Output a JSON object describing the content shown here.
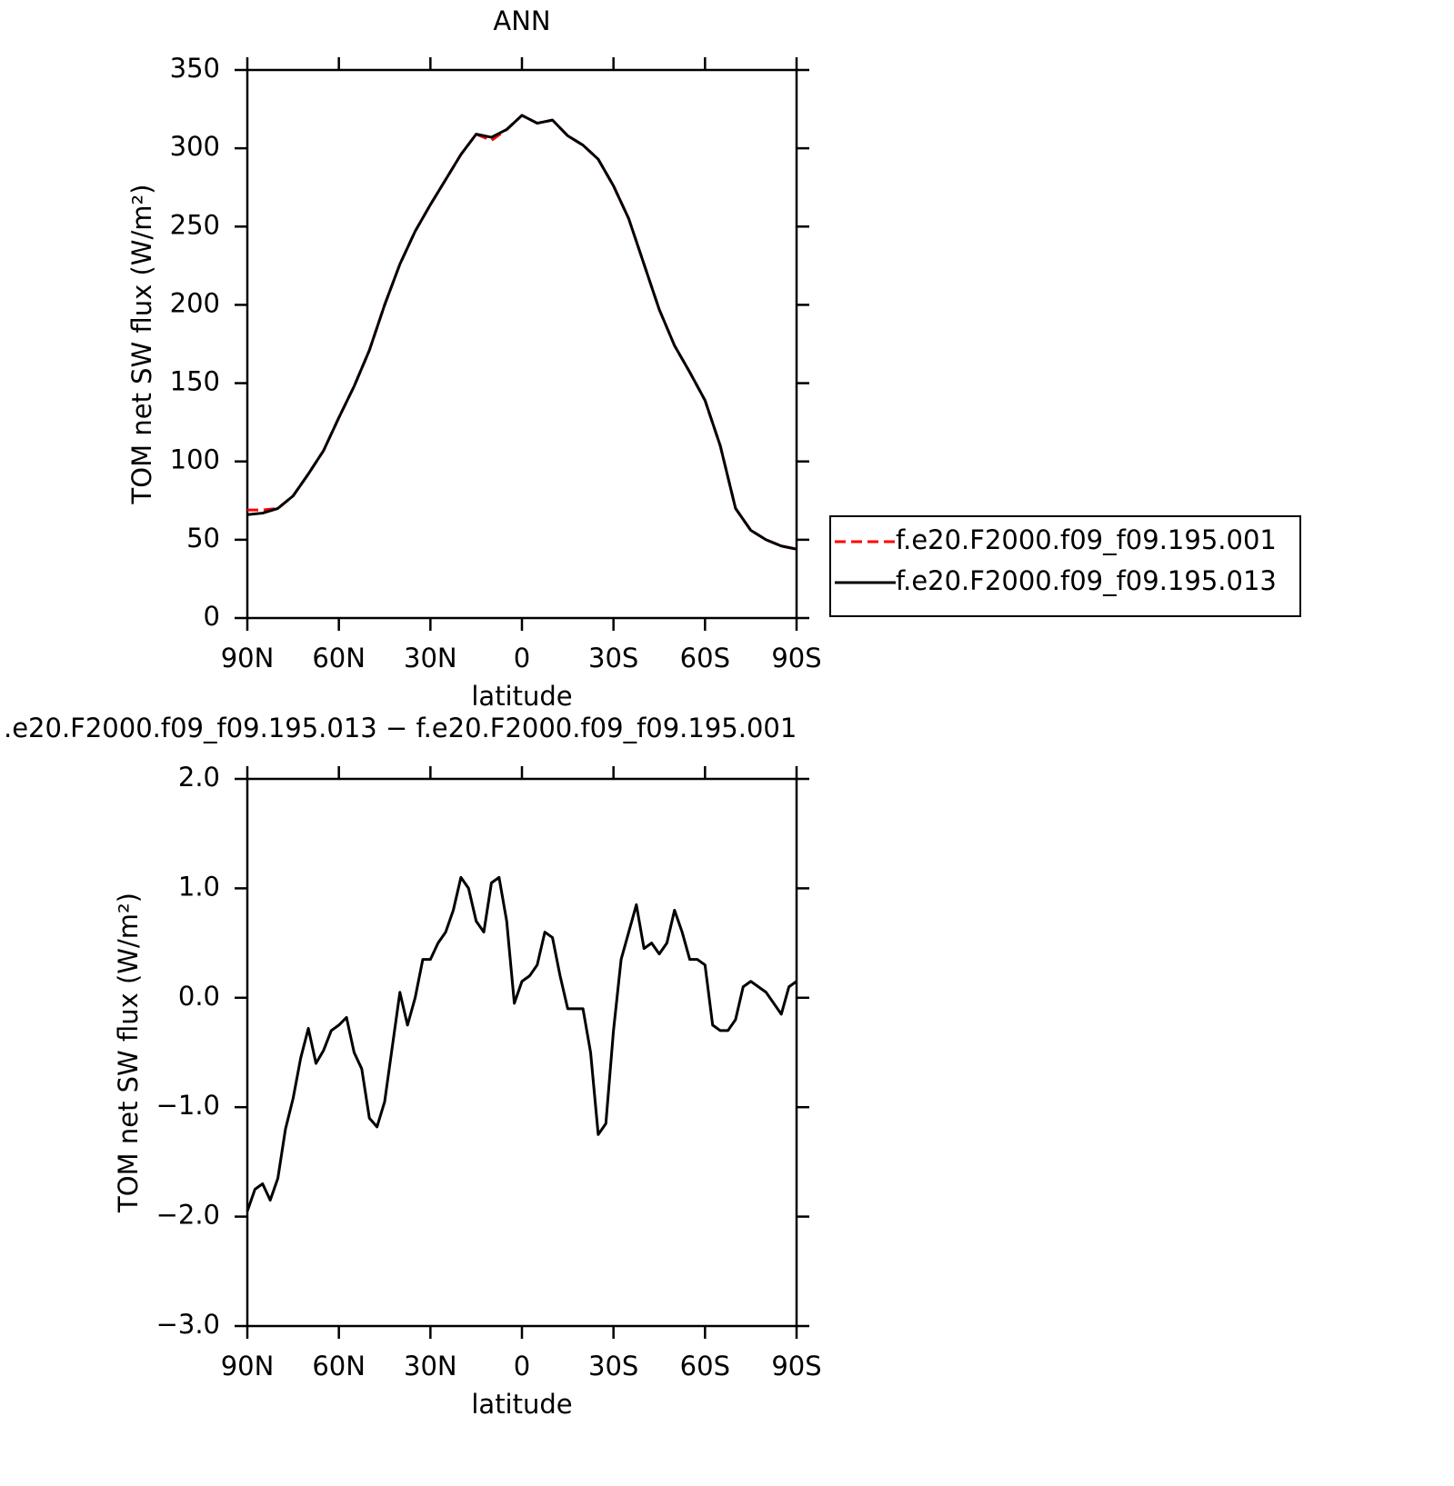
{
  "chart_data": [
    {
      "type": "line",
      "title": "ANN",
      "x_label": "latitude",
      "y_label": "TOM net SW flux (W/m²)",
      "x": [
        90,
        85,
        80,
        75,
        70,
        65,
        60,
        55,
        50,
        45,
        40,
        35,
        30,
        25,
        20,
        15,
        10,
        5,
        0,
        -5,
        -10,
        -15,
        -20,
        -25,
        -30,
        -35,
        -40,
        -45,
        -50,
        -55,
        -60,
        -65,
        -70,
        -75,
        -80,
        -85,
        -90
      ],
      "series": [
        {
          "name": "f.e20.F2000.f09_f09.195.001",
          "color": "#ff0000",
          "linestyle": "dashed",
          "values": [
            69,
            69,
            70,
            78,
            92,
            107,
            128,
            148,
            171,
            200,
            226,
            247,
            264,
            280,
            296,
            309,
            305,
            312,
            321,
            316,
            318,
            308,
            302,
            293,
            276,
            255,
            226,
            197,
            174,
            157,
            139,
            110,
            70,
            56,
            50,
            46,
            44
          ]
        },
        {
          "name": "f.e20.F2000.f09_f09.195.013",
          "color": "#000000",
          "linestyle": "solid",
          "values": [
            66,
            67,
            70,
            78,
            92,
            107,
            128,
            148,
            171,
            200,
            226,
            247,
            264,
            280,
            296,
            309,
            307,
            312,
            321,
            316,
            318,
            308,
            302,
            293,
            276,
            255,
            226,
            197,
            174,
            157,
            139,
            110,
            70,
            56,
            50,
            46,
            44
          ]
        }
      ],
      "xlim": [
        90,
        -90
      ],
      "xticks": [
        {
          "value": 90,
          "label": "90N"
        },
        {
          "value": 60,
          "label": "60N"
        },
        {
          "value": 30,
          "label": "30N"
        },
        0,
        {
          "value": -30,
          "label": "30S"
        },
        {
          "value": -60,
          "label": "60S"
        },
        {
          "value": -90,
          "label": "90S"
        }
      ],
      "ylim": [
        0,
        350
      ],
      "yticks": [
        0,
        50,
        100,
        150,
        200,
        250,
        300,
        350
      ],
      "legend": "outside-right"
    },
    {
      "type": "line",
      "title": ".e20.F2000.f09_f09.195.013 − f.e20.F2000.f09_f09.195.001",
      "x_label": "latitude",
      "y_label": "TOM net SW flux (W/m²)",
      "x": [
        90,
        87.5,
        85,
        82.5,
        80,
        77.5,
        75,
        72.5,
        70,
        67.5,
        65,
        62.5,
        60,
        57.5,
        55,
        52.5,
        50,
        47.5,
        45,
        42.5,
        40,
        37.5,
        35,
        32.5,
        30,
        27.5,
        25,
        22.5,
        20,
        17.5,
        15,
        12.5,
        10,
        7.5,
        5,
        2.5,
        0,
        -2.5,
        -5,
        -7.5,
        -10,
        -12.5,
        -15,
        -17.5,
        -20,
        -22.5,
        -25,
        -27.5,
        -30,
        -32.5,
        -35,
        -37.5,
        -40,
        -42.5,
        -45,
        -47.5,
        -50,
        -52.5,
        -55,
        -57.5,
        -60,
        -62.5,
        -65,
        -67.5,
        -70,
        -72.5,
        -75,
        -77.5,
        -80,
        -82.5,
        -85,
        -87.5,
        -90
      ],
      "series": [
        {
          "color": "#000000",
          "linestyle": "solid",
          "values": [
            -1.95,
            -1.75,
            -1.7,
            -1.85,
            -1.65,
            -1.2,
            -0.92,
            -0.55,
            -0.28,
            -0.6,
            -0.48,
            -0.3,
            -0.25,
            -0.18,
            -0.5,
            -0.65,
            -1.1,
            -1.18,
            -0.95,
            -0.45,
            0.05,
            -0.25,
            0.0,
            0.35,
            0.35,
            0.5,
            0.6,
            0.8,
            1.1,
            1.0,
            0.7,
            0.6,
            1.05,
            1.1,
            0.7,
            -0.05,
            0.15,
            0.2,
            0.3,
            0.6,
            0.55,
            0.2,
            -0.1,
            -0.1,
            -0.1,
            -0.5,
            -1.25,
            -1.15,
            -0.3,
            0.35,
            0.6,
            0.85,
            0.45,
            0.5,
            0.4,
            0.5,
            0.8,
            0.6,
            0.35,
            0.35,
            0.3,
            -0.25,
            -0.3,
            -0.3,
            -0.2,
            0.1,
            0.15,
            0.1,
            0.05,
            -0.05,
            -0.15,
            0.1,
            0.15
          ]
        }
      ],
      "xlim": [
        90,
        -90
      ],
      "xticks": [
        {
          "value": 90,
          "label": "90N"
        },
        {
          "value": 60,
          "label": "60N"
        },
        {
          "value": 30,
          "label": "30N"
        },
        0,
        {
          "value": -30,
          "label": "30S"
        },
        {
          "value": -60,
          "label": "60S"
        },
        {
          "value": -90,
          "label": "90S"
        }
      ],
      "ylim": [
        -3,
        2
      ],
      "yticks": [
        {
          "value": 2,
          "label": "2.0"
        },
        {
          "value": 1,
          "label": "1.0"
        },
        {
          "value": 0,
          "label": "0.0"
        },
        {
          "value": -1,
          "label": "−1.0"
        },
        {
          "value": -2,
          "label": "−2.0"
        },
        {
          "value": -3,
          "label": "−3.0"
        }
      ]
    }
  ]
}
